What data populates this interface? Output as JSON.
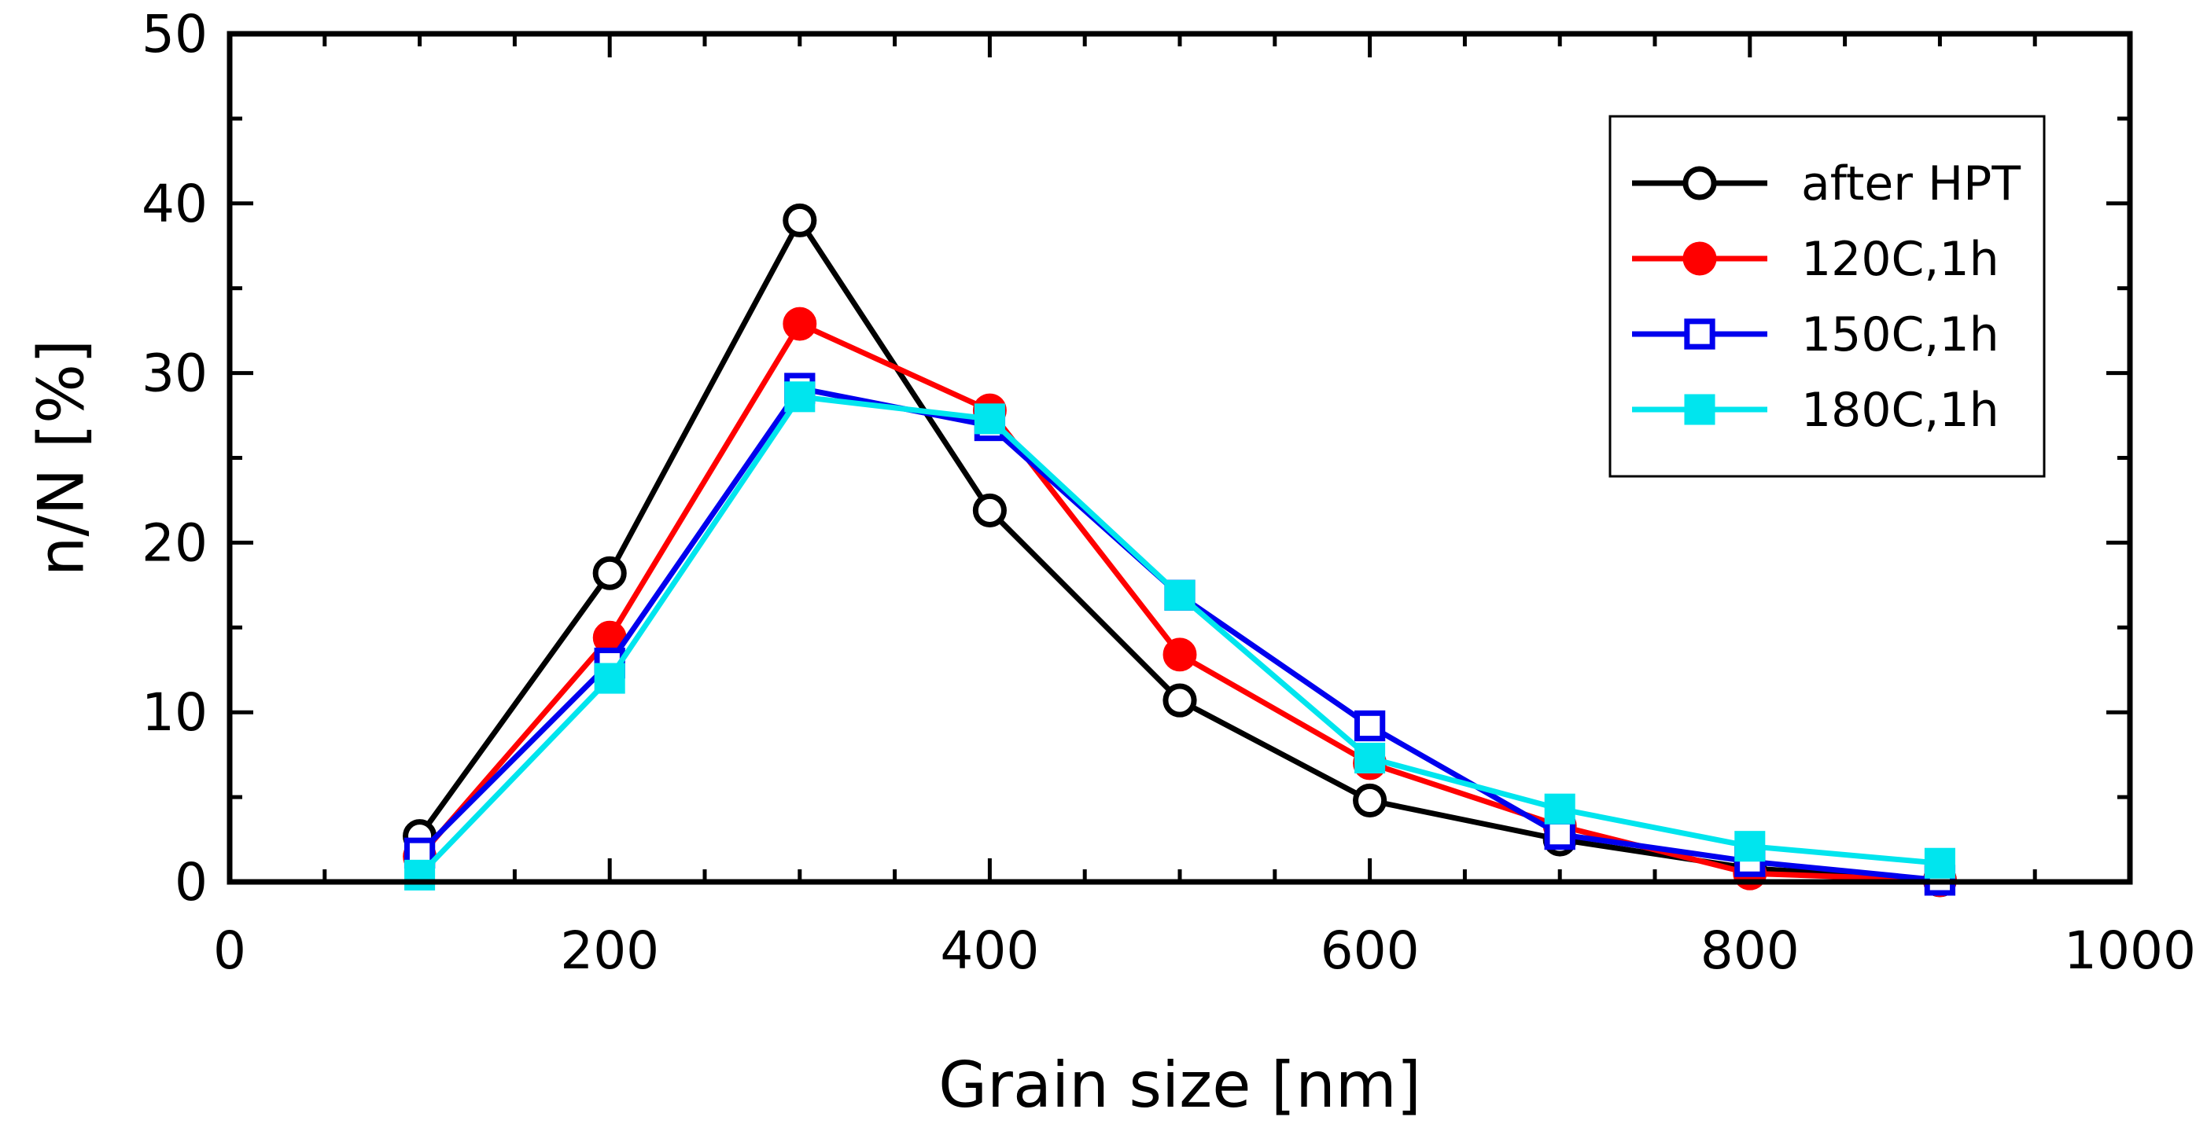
{
  "chart_data": {
    "type": "line",
    "title": "",
    "xlabel": "Grain size [nm]",
    "ylabel": "n/N [%]",
    "xlim": [
      0,
      1000
    ],
    "ylim": [
      0,
      50
    ],
    "xticks": [
      0,
      200,
      400,
      600,
      800,
      1000
    ],
    "yticks": [
      0,
      10,
      20,
      30,
      40,
      50
    ],
    "xtick_labels": [
      "0",
      "200",
      "400",
      "600",
      "800",
      "1000"
    ],
    "ytick_labels": [
      "0",
      "10",
      "20",
      "30",
      "40",
      "50"
    ],
    "x_minor_step": 50,
    "y_minor_step": 5,
    "grid": false,
    "legend_position": "top-right",
    "x": [
      100,
      200,
      300,
      400,
      500,
      600,
      700,
      800,
      900
    ],
    "series": [
      {
        "name": "after HPT",
        "color": "#000000",
        "marker": "open-circle",
        "values": [
          2.7,
          18.2,
          39.0,
          21.9,
          10.7,
          4.8,
          2.5,
          0.8,
          0.1
        ]
      },
      {
        "name": "120C,1h",
        "color": "#ff0000",
        "marker": "filled-circle",
        "values": [
          1.5,
          14.4,
          32.9,
          27.8,
          13.4,
          7.0,
          3.3,
          0.5,
          0.1
        ]
      },
      {
        "name": "150C,1h",
        "color": "#0000ee",
        "marker": "open-square",
        "values": [
          1.7,
          12.9,
          29.1,
          26.9,
          16.9,
          9.2,
          2.8,
          1.2,
          0.1
        ]
      },
      {
        "name": "180C,1h",
        "color": "#00e5ee",
        "marker": "filled-square",
        "values": [
          0.4,
          12.0,
          28.6,
          27.3,
          16.9,
          7.3,
          4.3,
          2.1,
          1.1
        ]
      }
    ]
  }
}
